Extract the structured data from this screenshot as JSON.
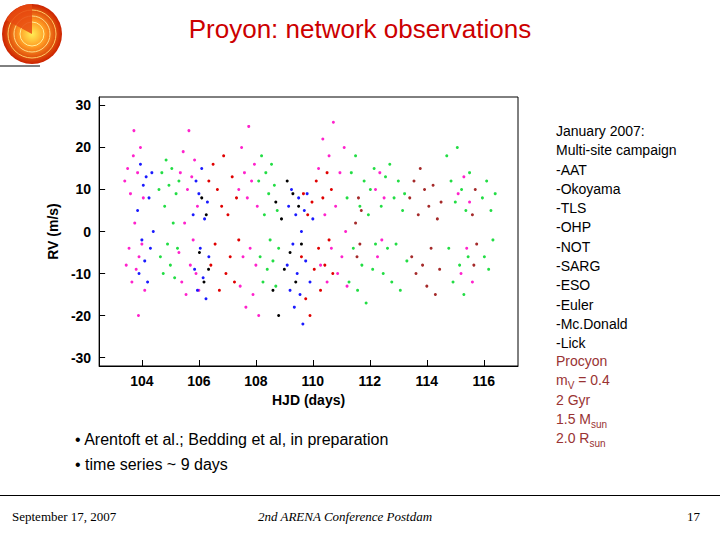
{
  "title": "Proyon: network observations",
  "chart_data": {
    "type": "scatter",
    "x_label": "HJD (days)",
    "y_label": "RV (m/s)",
    "xlim": [
      102.5,
      117.2
    ],
    "xticks": [
      104,
      106,
      108,
      110,
      112,
      114,
      116
    ],
    "ylim": [
      -32,
      32
    ],
    "yticks": [
      -30,
      -20,
      -10,
      0,
      10,
      20,
      30
    ],
    "grid": false,
    "marker": "circle",
    "series": [
      {
        "color": "#ff22cc",
        "values": [
          [
            103.4,
            12
          ],
          [
            103.45,
            -8
          ],
          [
            103.5,
            15
          ],
          [
            103.55,
            -4
          ],
          [
            103.6,
            9
          ],
          [
            103.65,
            -12
          ],
          [
            103.7,
            18
          ],
          [
            103.72,
            24
          ],
          [
            103.75,
            2
          ],
          [
            103.8,
            -9
          ],
          [
            103.85,
            14
          ],
          [
            103.88,
            -20
          ],
          [
            103.9,
            -6
          ],
          [
            103.95,
            20
          ],
          [
            104.0,
            -3
          ],
          [
            104.05,
            8
          ],
          [
            104.1,
            -14
          ]
        ]
      },
      {
        "color": "#1a1aff",
        "values": [
          [
            103.85,
            5
          ],
          [
            103.9,
            -10
          ],
          [
            103.95,
            16
          ],
          [
            104.0,
            -2
          ],
          [
            104.05,
            11
          ],
          [
            104.1,
            -7
          ],
          [
            104.15,
            13
          ],
          [
            104.2,
            -12
          ],
          [
            104.25,
            8
          ],
          [
            104.3,
            -4
          ],
          [
            104.35,
            14
          ],
          [
            104.4,
            0
          ]
        ]
      },
      {
        "color": "#22dd44",
        "values": [
          [
            104.6,
            10
          ],
          [
            104.65,
            -6
          ],
          [
            104.7,
            14
          ],
          [
            104.75,
            -10
          ],
          [
            104.8,
            6
          ],
          [
            104.85,
            17
          ],
          [
            104.9,
            -3
          ],
          [
            104.95,
            11
          ],
          [
            105.0,
            -8
          ],
          [
            105.05,
            15
          ],
          [
            105.1,
            2
          ],
          [
            105.15,
            -11
          ],
          [
            105.2,
            9
          ],
          [
            105.25,
            -4
          ],
          [
            105.3,
            12
          ]
        ]
      },
      {
        "color": "#ff22cc",
        "values": [
          [
            105.3,
            -5
          ],
          [
            105.35,
            14
          ],
          [
            105.4,
            -12
          ],
          [
            105.45,
            19
          ],
          [
            105.5,
            2
          ],
          [
            105.55,
            -15
          ],
          [
            105.6,
            10
          ],
          [
            105.65,
            24
          ],
          [
            105.7,
            -8
          ],
          [
            105.75,
            13
          ],
          [
            105.8,
            -2
          ],
          [
            105.85,
            17
          ],
          [
            105.9,
            -10
          ],
          [
            105.95,
            6
          ],
          [
            106.0,
            -14
          ]
        ]
      },
      {
        "color": "#1a1aff",
        "values": [
          [
            105.8,
            4
          ],
          [
            105.85,
            -9
          ],
          [
            105.9,
            12
          ],
          [
            105.95,
            -14
          ],
          [
            106.0,
            9
          ],
          [
            106.05,
            -4
          ],
          [
            106.1,
            15
          ],
          [
            106.15,
            -11
          ],
          [
            106.2,
            3
          ],
          [
            106.25,
            -16
          ],
          [
            106.3,
            7
          ],
          [
            106.35,
            -6
          ]
        ]
      },
      {
        "color": "#000000",
        "values": [
          [
            106.02,
            -5
          ],
          [
            106.1,
            8
          ],
          [
            106.18,
            -12
          ],
          [
            106.26,
            4
          ],
          [
            106.34,
            -9
          ]
        ]
      },
      {
        "color": "#e00000",
        "values": [
          [
            106.35,
            12
          ],
          [
            106.42,
            -8
          ],
          [
            106.5,
            16
          ],
          [
            106.57,
            -3
          ],
          [
            106.65,
            10
          ],
          [
            106.72,
            -14
          ],
          [
            106.8,
            6
          ],
          [
            106.87,
            18
          ],
          [
            106.95,
            -10
          ],
          [
            107.02,
            4
          ],
          [
            107.1,
            -6
          ],
          [
            107.17,
            13
          ],
          [
            107.25,
            -12
          ],
          [
            107.32,
            8
          ],
          [
            107.4,
            -2
          ]
        ]
      },
      {
        "color": "#ff22cc",
        "values": [
          [
            107.4,
            10
          ],
          [
            107.45,
            -13
          ],
          [
            107.5,
            20
          ],
          [
            107.55,
            -6
          ],
          [
            107.6,
            14
          ],
          [
            107.65,
            -18
          ],
          [
            107.7,
            8
          ],
          [
            107.75,
            25
          ],
          [
            107.8,
            -4
          ],
          [
            107.85,
            12
          ],
          [
            107.9,
            -15
          ],
          [
            107.95,
            16
          ],
          [
            108.0,
            -8
          ],
          [
            108.05,
            6
          ],
          [
            108.1,
            -20
          ]
        ]
      },
      {
        "color": "#22dd44",
        "values": [
          [
            108.1,
            12
          ],
          [
            108.15,
            -6
          ],
          [
            108.2,
            18
          ],
          [
            108.25,
            -12
          ],
          [
            108.3,
            4
          ],
          [
            108.35,
            14
          ],
          [
            108.4,
            -9
          ],
          [
            108.45,
            9
          ],
          [
            108.5,
            -2
          ],
          [
            108.55,
            16
          ],
          [
            108.6,
            -7
          ],
          [
            108.65,
            11
          ],
          [
            108.7,
            -13
          ],
          [
            108.75,
            5
          ],
          [
            108.8,
            -4
          ]
        ]
      },
      {
        "color": "#000000",
        "values": [
          [
            108.6,
            -14
          ],
          [
            108.7,
            7
          ],
          [
            108.8,
            -20
          ],
          [
            108.9,
            3
          ],
          [
            109.0,
            -9
          ],
          [
            109.1,
            12
          ],
          [
            109.2,
            -5
          ],
          [
            109.3,
            9
          ],
          [
            109.4,
            -12
          ],
          [
            109.5,
            6
          ],
          [
            109.6,
            -3
          ]
        ]
      },
      {
        "color": "#1a1aff",
        "values": [
          [
            109.1,
            -8
          ],
          [
            109.15,
            6
          ],
          [
            109.2,
            -14
          ],
          [
            109.25,
            10
          ],
          [
            109.3,
            -3
          ],
          [
            109.35,
            -18
          ],
          [
            109.4,
            4
          ],
          [
            109.45,
            -10
          ],
          [
            109.5,
            8
          ],
          [
            109.55,
            -15
          ],
          [
            109.6,
            0
          ],
          [
            109.65,
            -22
          ],
          [
            109.7,
            5
          ],
          [
            109.75,
            -7
          ],
          [
            109.8,
            9
          ],
          [
            109.9,
            -12
          ],
          [
            110.0,
            3
          ]
        ]
      },
      {
        "color": "#e00000",
        "values": [
          [
            109.6,
            -6
          ],
          [
            109.67,
            9
          ],
          [
            109.75,
            -16
          ],
          [
            109.82,
            4
          ],
          [
            109.9,
            -20
          ],
          [
            109.97,
            7
          ],
          [
            110.05,
            -9
          ],
          [
            110.12,
            12
          ],
          [
            110.2,
            -4
          ],
          [
            110.27,
            -14
          ],
          [
            110.35,
            8
          ],
          [
            110.42,
            -8
          ],
          [
            110.5,
            14
          ],
          [
            110.57,
            -2
          ],
          [
            110.65,
            10
          ],
          [
            110.7,
            -10
          ]
        ]
      },
      {
        "color": "#ff22cc",
        "values": [
          [
            110.2,
            15
          ],
          [
            110.27,
            -8
          ],
          [
            110.35,
            22
          ],
          [
            110.42,
            4
          ],
          [
            110.5,
            -12
          ],
          [
            110.57,
            18
          ],
          [
            110.65,
            -4
          ],
          [
            110.72,
            26
          ],
          [
            110.8,
            6
          ],
          [
            110.87,
            -10
          ],
          [
            110.95,
            14
          ],
          [
            111.02,
            -6
          ],
          [
            111.1,
            20
          ],
          [
            111.15,
            0
          ],
          [
            111.2,
            -13
          ]
        ]
      },
      {
        "color": "#22dd44",
        "values": [
          [
            111.2,
            8
          ],
          [
            111.27,
            -12
          ],
          [
            111.35,
            14
          ],
          [
            111.42,
            -4
          ],
          [
            111.5,
            18
          ],
          [
            111.57,
            -14
          ],
          [
            111.65,
            6
          ],
          [
            111.72,
            -8
          ],
          [
            111.8,
            12
          ],
          [
            111.87,
            -17
          ],
          [
            111.95,
            4
          ],
          [
            112.02,
            10
          ],
          [
            112.1,
            -9
          ],
          [
            112.15,
            15
          ],
          [
            112.2,
            -3
          ]
        ]
      },
      {
        "color": "#a52a2a",
        "values": [
          [
            111.5,
            2
          ],
          [
            111.55,
            -6
          ],
          [
            111.6,
            8
          ],
          [
            111.65,
            -3
          ],
          [
            111.7,
            5
          ]
        ]
      },
      {
        "color": "#ff22cc",
        "values": [
          [
            112.2,
            10
          ],
          [
            112.27,
            -6
          ],
          [
            112.35,
            14
          ],
          [
            112.42,
            -2
          ],
          [
            112.5,
            8
          ]
        ]
      },
      {
        "color": "#22dd44",
        "values": [
          [
            112.4,
            6
          ],
          [
            112.47,
            -10
          ],
          [
            112.55,
            13
          ],
          [
            112.62,
            -4
          ],
          [
            112.7,
            16
          ],
          [
            112.77,
            -12
          ],
          [
            112.85,
            8
          ],
          [
            112.92,
            -3
          ],
          [
            113.0,
            12
          ],
          [
            113.07,
            -14
          ],
          [
            113.15,
            5
          ],
          [
            113.22,
            9
          ],
          [
            113.3,
            -7
          ]
        ]
      },
      {
        "color": "#a52a2a",
        "values": [
          [
            113.4,
            8
          ],
          [
            113.47,
            -6
          ],
          [
            113.55,
            12
          ],
          [
            113.62,
            -10
          ],
          [
            113.7,
            4
          ],
          [
            113.77,
            15
          ],
          [
            113.85,
            -8
          ],
          [
            113.92,
            10
          ],
          [
            114.0,
            -13
          ],
          [
            114.07,
            6
          ],
          [
            114.15,
            -4
          ],
          [
            114.22,
            11
          ],
          [
            114.3,
            -15
          ],
          [
            114.37,
            3
          ],
          [
            114.45,
            -9
          ],
          [
            114.5,
            7
          ]
        ]
      },
      {
        "color": "#22dd44",
        "values": [
          [
            114.7,
            18
          ],
          [
            114.77,
            -4
          ],
          [
            114.85,
            12
          ],
          [
            114.92,
            -12
          ],
          [
            115.0,
            7
          ],
          [
            115.07,
            20
          ],
          [
            115.15,
            -8
          ],
          [
            115.22,
            10
          ],
          [
            115.3,
            -15
          ],
          [
            115.37,
            5
          ],
          [
            115.45,
            -6
          ],
          [
            115.5,
            14
          ]
        ]
      },
      {
        "color": "#ff22cc",
        "values": [
          [
            115.1,
            9
          ],
          [
            115.2,
            -10
          ],
          [
            115.3,
            13
          ],
          [
            115.4,
            -4
          ],
          [
            115.5,
            7
          ],
          [
            115.6,
            -12
          ]
        ]
      },
      {
        "color": "#a52a2a",
        "values": [
          [
            115.6,
            4
          ],
          [
            115.65,
            -8
          ],
          [
            115.7,
            10
          ],
          [
            115.75,
            -3
          ]
        ]
      },
      {
        "color": "#22dd44",
        "values": [
          [
            115.95,
            8
          ],
          [
            116.02,
            -6
          ],
          [
            116.1,
            12
          ],
          [
            116.17,
            -9
          ],
          [
            116.25,
            5
          ],
          [
            116.32,
            -2
          ],
          [
            116.4,
            9
          ]
        ]
      }
    ]
  },
  "campaign": [
    "January 2007:",
    "Multi-site campaign",
    "-AAT",
    "-Okoyama",
    "-TLS",
    "-OHP",
    "-NOT",
    "-SARG",
    "-ESO",
    "-Euler",
    "-Mc.Donald",
    "-Lick"
  ],
  "star": [
    [
      {
        "text": "Procyon"
      }
    ],
    [
      {
        "text": "m"
      },
      {
        "text": "V",
        "sub": true
      },
      {
        "text": " = 0.4"
      }
    ],
    [
      {
        "text": "2 Gyr"
      }
    ],
    [
      {
        "text": "1.5 M"
      },
      {
        "text": "sun",
        "sub": true
      }
    ],
    [
      {
        "text": "2.0 R"
      },
      {
        "text": "sun",
        "sub": true
      }
    ]
  ],
  "bullets": [
    "• Arentoft et al.; Bedding et al, in preparation",
    "• time series ~ 9 days"
  ],
  "footer": {
    "date": "September 17, 2007",
    "event": "2nd ARENA Conference Postdam",
    "page": 17
  }
}
